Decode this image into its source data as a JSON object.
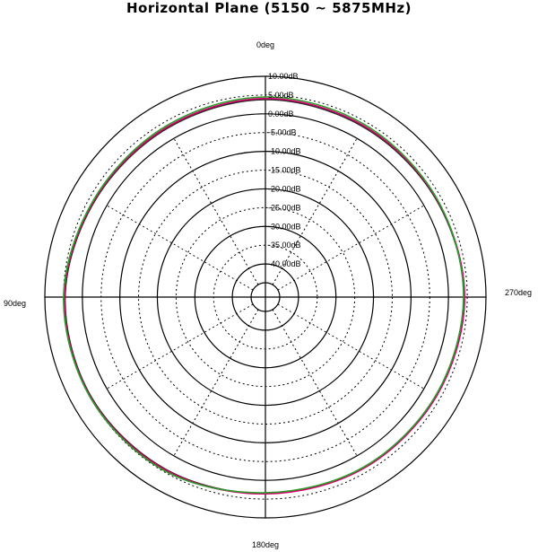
{
  "chart_data": {
    "type": "polar",
    "title": "Horizontal Plane (5150 ~ 5875MHz)",
    "angle_labels": {
      "top": "0deg",
      "right": "270deg",
      "bottom": "180deg",
      "left": "90deg"
    },
    "angle_direction": "counterclockwise",
    "zero_location": "top",
    "radial_unit": "dB",
    "radial_ticks_db": [
      10,
      5,
      0,
      -5,
      -10,
      -15,
      -20,
      -25,
      -30,
      -35,
      -40
    ],
    "radial_tick_labels": [
      "10.00dB",
      "5.00dB",
      "0.00dB",
      "-5.00dB",
      "-10.00dB",
      "-15.00dB",
      "-20.00dB",
      "-25.00dB",
      "-30.00dB",
      "-35.00dB",
      "-40.00dB"
    ],
    "rlim_db": [
      -45,
      10
    ],
    "solid_ring_db": [
      10,
      0,
      -10,
      -20,
      -30,
      -40
    ],
    "dotted_ring_db": [
      5,
      -5,
      -15,
      -25,
      -35
    ],
    "spoke_angles_deg": [
      30,
      60,
      120,
      150,
      210,
      240,
      300,
      330
    ],
    "angles_deg": [
      0,
      30,
      60,
      90,
      120,
      150,
      180,
      210,
      240,
      270,
      300,
      330
    ],
    "series": [
      {
        "color": "#2b2b2b",
        "values": [
          3.8,
          3.2,
          3.4,
          4.6,
          4.7,
          4.2,
          3.5,
          3.6,
          3.7,
          4.2,
          3.6,
          3.5
        ]
      },
      {
        "color": "#d4006a",
        "values": [
          4.1,
          3.5,
          3.6,
          4.8,
          4.9,
          4.4,
          3.6,
          3.8,
          3.9,
          4.3,
          3.8,
          3.8
        ]
      },
      {
        "color": "#2e9c2e",
        "values": [
          4.5,
          3.9,
          3.8,
          5.0,
          5.0,
          4.7,
          3.3,
          3.5,
          3.6,
          4.0,
          3.9,
          4.2
        ]
      }
    ],
    "legend": "none",
    "grid": true
  }
}
